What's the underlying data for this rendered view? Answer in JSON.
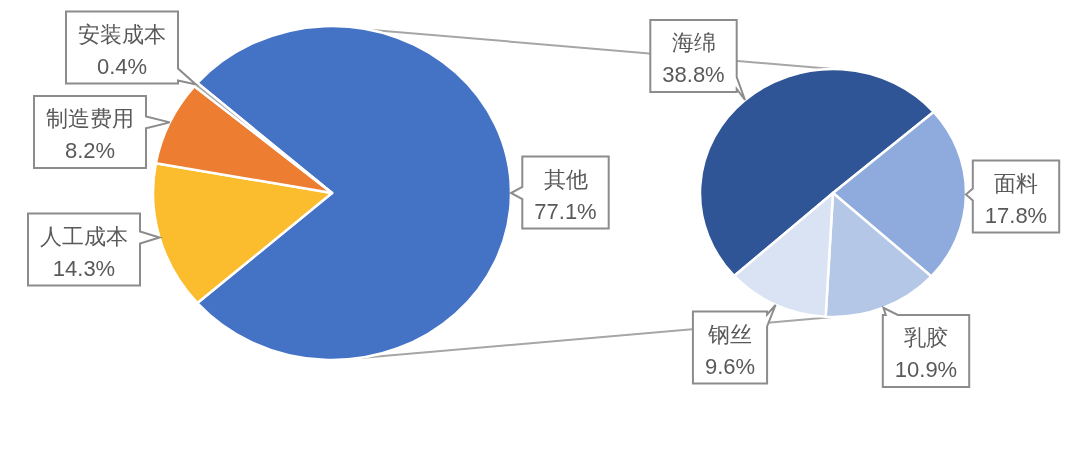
{
  "chart_data": [
    {
      "type": "pie",
      "categories": [
        "其他",
        "人工成本",
        "制造费用",
        "安装成本"
      ],
      "values": [
        77.1,
        14.3,
        8.2,
        0.4
      ],
      "colors": [
        "#4472c4",
        "#fbbc2e",
        "#ed7d31",
        "#a5a5a5"
      ],
      "value_labels": [
        "77.1%",
        "14.3%",
        "8.2%",
        "0.4%"
      ]
    },
    {
      "type": "pie",
      "categories": [
        "海绵",
        "面料",
        "乳胶",
        "钢丝"
      ],
      "values": [
        38.8,
        17.8,
        10.9,
        9.6
      ],
      "colors": [
        "#2f5597",
        "#8faadc",
        "#b4c7e7",
        "#dae3f3"
      ],
      "value_labels": [
        "38.8%",
        "17.8%",
        "10.9%",
        "9.6%"
      ]
    }
  ]
}
